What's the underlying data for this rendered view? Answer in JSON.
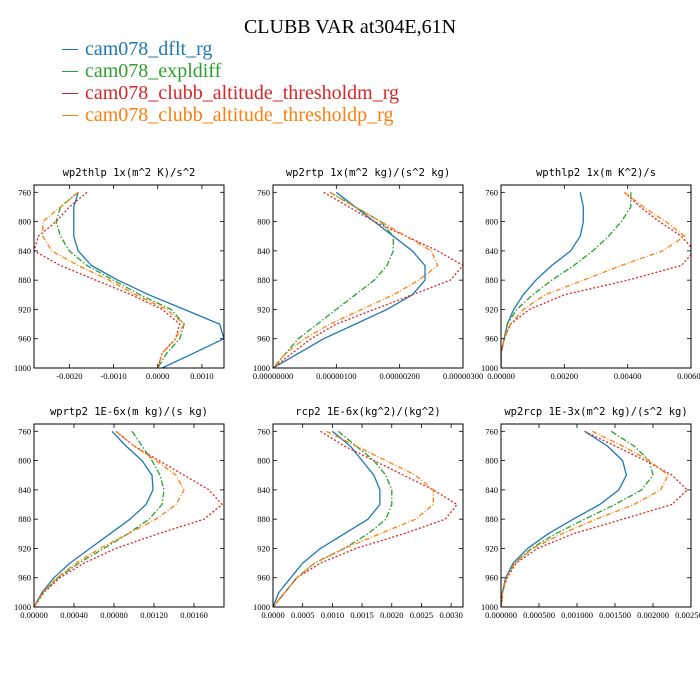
{
  "figure": {
    "title": "CLUBB VAR at304E,61N",
    "legend": [
      {
        "label": "cam078_dflt_rg",
        "color": "#1f77b4"
      },
      {
        "label": "cam078_expldiff",
        "color": "#2ca02c"
      },
      {
        "label": "cam078_clubb_altitude_thresholdm_rg",
        "color": "#d62728"
      },
      {
        "label": "cam078_clubb_altitude_thresholdp_rg",
        "color": "#ff7f0e"
      }
    ]
  },
  "chart_data": [
    {
      "type": "line",
      "title": "wp2thlp  1x(m^2 K)/s^2",
      "xlim": [
        -0.0028,
        0.0015
      ],
      "ylim": [
        1000,
        750
      ],
      "x_ticks": [
        -0.002,
        -0.001,
        0.0,
        0.001
      ],
      "x_tick_labels": [
        "-0.0020",
        "-0.0010",
        "0.0000",
        "0.0010"
      ],
      "y_ticks": [
        760,
        800,
        840,
        880,
        920,
        960,
        1000
      ],
      "series": [
        {
          "name": "cam078_dflt_rg",
          "y": [
            760,
            780,
            800,
            820,
            840,
            860,
            880,
            900,
            920,
            940,
            960,
            980,
            1000
          ],
          "x": [
            -0.0018,
            -0.0019,
            -0.0019,
            -0.0019,
            -0.0018,
            -0.0015,
            -0.0009,
            -0.0002,
            0.0006,
            0.0014,
            0.0015,
            0.0008,
            0.0001
          ]
        },
        {
          "name": "cam078_expldiff",
          "y": [
            760,
            780,
            800,
            820,
            840,
            860,
            880,
            900,
            920,
            940,
            960,
            980,
            1000
          ],
          "x": [
            -0.0018,
            -0.0022,
            -0.0023,
            -0.0022,
            -0.002,
            -0.0016,
            -0.001,
            -0.0004,
            0.0003,
            0.0006,
            0.0005,
            0.0002,
            0.0
          ]
        },
        {
          "name": "cam078_clubb_altitude_thresholdm_rg",
          "y": [
            760,
            780,
            800,
            820,
            840,
            860,
            880,
            900,
            920,
            940,
            960,
            980,
            1000
          ],
          "x": [
            -0.0016,
            -0.002,
            -0.0023,
            -0.0027,
            -0.0028,
            -0.0022,
            -0.0014,
            -0.0006,
            0.0001,
            0.0005,
            0.0004,
            0.0001,
            0.0
          ]
        },
        {
          "name": "cam078_clubb_altitude_thresholdp_rg",
          "y": [
            760,
            780,
            800,
            820,
            840,
            860,
            880,
            900,
            920,
            940,
            960,
            980,
            1000
          ],
          "x": [
            -0.0018,
            -0.0022,
            -0.0026,
            -0.0026,
            -0.0024,
            -0.0018,
            -0.0011,
            -0.0005,
            0.0002,
            0.0006,
            0.0004,
            0.0001,
            0.0
          ]
        }
      ]
    },
    {
      "type": "line",
      "title": "wp2rtp  1x(m^2 kg)/(s^2 kg)",
      "xlim": [
        0.0,
        3e-06
      ],
      "ylim": [
        1000,
        750
      ],
      "x_ticks": [
        0.0,
        1e-06,
        2e-06,
        3e-06
      ],
      "x_tick_labels": [
        "0.00000000",
        "0.00000100",
        "0.00000200",
        "0.00000300"
      ],
      "y_ticks": [
        760,
        800,
        840,
        880,
        920,
        960,
        1000
      ],
      "series": [
        {
          "name": "cam078_dflt_rg",
          "y": [
            760,
            780,
            800,
            820,
            840,
            860,
            880,
            900,
            920,
            940,
            960,
            980,
            1000
          ],
          "x": [
            1e-06,
            1.3e-06,
            1.6e-06,
            1.9e-06,
            2.2e-06,
            2.4e-06,
            2.4e-06,
            2.2e-06,
            1.8e-06,
            1.3e-06,
            8e-07,
            4e-07,
            0.0
          ]
        },
        {
          "name": "cam078_expldiff",
          "y": [
            760,
            780,
            800,
            820,
            840,
            860,
            880,
            900,
            920,
            940,
            960,
            980,
            1000
          ],
          "x": [
            9e-07,
            1.3e-06,
            1.7e-06,
            1.9e-06,
            1.9e-06,
            1.8e-06,
            1.6e-06,
            1.3e-06,
            1e-06,
            7e-07,
            4e-07,
            2e-07,
            0.0
          ]
        },
        {
          "name": "cam078_clubb_altitude_thresholdm_rg",
          "y": [
            760,
            780,
            800,
            820,
            840,
            860,
            880,
            900,
            920,
            940,
            960,
            980,
            1000
          ],
          "x": [
            8e-07,
            1.2e-06,
            1.6e-06,
            2.1e-06,
            2.6e-06,
            3e-06,
            2.8e-06,
            2.2e-06,
            1.6e-06,
            1e-06,
            6e-07,
            3e-07,
            0.0
          ]
        },
        {
          "name": "cam078_clubb_altitude_thresholdp_rg",
          "y": [
            760,
            780,
            800,
            820,
            840,
            860,
            880,
            900,
            920,
            940,
            960,
            980,
            1000
          ],
          "x": [
            9e-07,
            1.3e-06,
            1.7e-06,
            2.1e-06,
            2.5e-06,
            2.6e-06,
            2.3e-06,
            1.9e-06,
            1.4e-06,
            9e-07,
            5e-07,
            2e-07,
            0.0
          ]
        }
      ]
    },
    {
      "type": "line",
      "title": "wpthlp2  1x(m K^2)/s",
      "xlim": [
        0.0,
        0.006
      ],
      "ylim": [
        1000,
        750
      ],
      "x_ticks": [
        0.0,
        0.002,
        0.004,
        0.006
      ],
      "x_tick_labels": [
        "0.00000",
        "0.00200",
        "0.00400",
        "0.00600"
      ],
      "y_ticks": [
        760,
        800,
        840,
        880,
        920,
        960,
        1000
      ],
      "series": [
        {
          "name": "cam078_dflt_rg",
          "y": [
            760,
            780,
            800,
            820,
            840,
            860,
            880,
            900,
            920,
            940,
            960,
            980,
            1000
          ],
          "x": [
            0.0025,
            0.0026,
            0.0026,
            0.0025,
            0.0022,
            0.0016,
            0.0011,
            0.0007,
            0.0004,
            0.0002,
            0.0001,
            0.0,
            0.0
          ]
        },
        {
          "name": "cam078_expldiff",
          "y": [
            760,
            780,
            800,
            820,
            840,
            860,
            880,
            900,
            920,
            940,
            960,
            980,
            1000
          ],
          "x": [
            0.0041,
            0.0041,
            0.0038,
            0.0034,
            0.0029,
            0.0023,
            0.0016,
            0.001,
            0.0005,
            0.0002,
            0.0001,
            0.0,
            0.0
          ]
        },
        {
          "name": "cam078_clubb_altitude_thresholdm_rg",
          "y": [
            760,
            780,
            800,
            820,
            840,
            860,
            880,
            900,
            920,
            940,
            960,
            980,
            1000
          ],
          "x": [
            0.0039,
            0.0044,
            0.005,
            0.0057,
            0.0061,
            0.0057,
            0.004,
            0.002,
            0.0009,
            0.0003,
            0.0001,
            0.0,
            0.0
          ]
        },
        {
          "name": "cam078_clubb_altitude_thresholdp_rg",
          "y": [
            760,
            780,
            800,
            820,
            840,
            860,
            880,
            900,
            920,
            940,
            960,
            980,
            1000
          ],
          "x": [
            0.0039,
            0.0045,
            0.0052,
            0.0058,
            0.0051,
            0.0038,
            0.0026,
            0.0014,
            0.0007,
            0.0003,
            0.0001,
            0.0,
            0.0
          ]
        }
      ]
    },
    {
      "type": "line",
      "title": "wprtp2  1E-6x(m kg)/(s kg)",
      "xlim": [
        0.0,
        0.0019
      ],
      "ylim": [
        1000,
        750
      ],
      "x_ticks": [
        0.0,
        0.0004,
        0.0008,
        0.0012,
        0.0016
      ],
      "x_tick_labels": [
        "0.00000",
        "0.00040",
        "0.00080",
        "0.00120",
        "0.00160"
      ],
      "y_ticks": [
        760,
        800,
        840,
        880,
        920,
        960,
        1000
      ],
      "series": [
        {
          "name": "cam078_dflt_rg",
          "y": [
            760,
            780,
            800,
            820,
            840,
            860,
            880,
            900,
            920,
            940,
            960,
            980,
            1000
          ],
          "x": [
            0.00078,
            0.00092,
            0.00108,
            0.00118,
            0.00119,
            0.00112,
            0.00096,
            0.00076,
            0.00056,
            0.00036,
            0.0002,
            8e-05,
            0.0
          ]
        },
        {
          "name": "cam078_expldiff",
          "y": [
            760,
            780,
            800,
            820,
            840,
            860,
            880,
            900,
            920,
            940,
            960,
            980,
            1000
          ],
          "x": [
            0.00098,
            0.00108,
            0.00118,
            0.00126,
            0.0013,
            0.00128,
            0.00115,
            0.00094,
            0.0007,
            0.00045,
            0.00024,
            9e-05,
            0.0
          ]
        },
        {
          "name": "cam078_clubb_altitude_thresholdm_rg",
          "y": [
            760,
            780,
            800,
            820,
            840,
            860,
            880,
            900,
            920,
            940,
            960,
            980,
            1000
          ],
          "x": [
            0.00082,
            0.001,
            0.00125,
            0.0015,
            0.00175,
            0.00188,
            0.0017,
            0.00124,
            0.00082,
            0.0005,
            0.00026,
            0.0001,
            0.0
          ]
        },
        {
          "name": "cam078_clubb_altitude_thresholdp_rg",
          "y": [
            760,
            780,
            800,
            820,
            840,
            860,
            880,
            900,
            920,
            940,
            960,
            980,
            1000
          ],
          "x": [
            0.00082,
            0.001,
            0.00122,
            0.00142,
            0.0015,
            0.00142,
            0.00122,
            0.00094,
            0.00066,
            0.00042,
            0.00023,
            9e-05,
            0.0
          ]
        }
      ]
    },
    {
      "type": "line",
      "title": "rcp2  1E-6x(kg^2)/(kg^2)",
      "xlim": [
        0.0,
        0.0032
      ],
      "ylim": [
        1000,
        750
      ],
      "x_ticks": [
        0.0,
        0.0005,
        0.001,
        0.0015,
        0.002,
        0.0025,
        0.003
      ],
      "x_tick_labels": [
        "0.0000",
        "0.0005",
        "0.0010",
        "0.0015",
        "0.0020",
        "0.0025",
        "0.0030"
      ],
      "y_ticks": [
        760,
        800,
        840,
        880,
        920,
        960,
        1000
      ],
      "series": [
        {
          "name": "cam078_dflt_rg",
          "y": [
            760,
            780,
            800,
            820,
            840,
            860,
            880,
            900,
            920,
            940,
            960,
            980,
            1000
          ],
          "x": [
            0.001,
            0.0013,
            0.0015,
            0.0017,
            0.0018,
            0.0018,
            0.0016,
            0.0012,
            0.0008,
            0.0005,
            0.0003,
            0.0001,
            0.0
          ]
        },
        {
          "name": "cam078_expldiff",
          "y": [
            760,
            780,
            800,
            820,
            840,
            860,
            880,
            900,
            920,
            940,
            960,
            980,
            1000
          ],
          "x": [
            0.0011,
            0.0014,
            0.0017,
            0.0019,
            0.002,
            0.002,
            0.0019,
            0.0016,
            0.0012,
            0.0007,
            0.0004,
            0.0002,
            0.0
          ]
        },
        {
          "name": "cam078_clubb_altitude_thresholdm_rg",
          "y": [
            760,
            780,
            800,
            820,
            840,
            860,
            880,
            900,
            920,
            940,
            960,
            980,
            1000
          ],
          "x": [
            0.0008,
            0.0012,
            0.0017,
            0.0022,
            0.0027,
            0.0031,
            0.0029,
            0.0022,
            0.0014,
            0.0008,
            0.0004,
            0.0002,
            0.0
          ]
        },
        {
          "name": "cam078_clubb_altitude_thresholdp_rg",
          "y": [
            760,
            780,
            800,
            820,
            840,
            860,
            880,
            900,
            920,
            940,
            960,
            980,
            1000
          ],
          "x": [
            0.0009,
            0.0014,
            0.0019,
            0.0024,
            0.0027,
            0.0027,
            0.0024,
            0.0018,
            0.0012,
            0.0007,
            0.0004,
            0.0002,
            0.0
          ]
        }
      ]
    },
    {
      "type": "line",
      "title": "wp2rcp  1E-3x(m^2 kg)/(s^2 kg)",
      "xlim": [
        0.0,
        0.0025
      ],
      "ylim": [
        1000,
        750
      ],
      "x_ticks": [
        0.0,
        0.0005,
        0.001,
        0.0015,
        0.002,
        0.0025
      ],
      "x_tick_labels": [
        "0.000000",
        "0.000500",
        "0.001000",
        "0.001500",
        "0.002000",
        "0.002500"
      ],
      "y_ticks": [
        760,
        800,
        840,
        880,
        920,
        960,
        1000
      ],
      "series": [
        {
          "name": "cam078_dflt_rg",
          "y": [
            760,
            780,
            800,
            820,
            840,
            860,
            880,
            900,
            920,
            940,
            960,
            980,
            1000
          ],
          "x": [
            0.0011,
            0.0014,
            0.0016,
            0.00165,
            0.00155,
            0.0013,
            0.00095,
            0.00062,
            0.00035,
            0.00016,
            6e-05,
            2e-05,
            0.0
          ]
        },
        {
          "name": "cam078_expldiff",
          "y": [
            760,
            780,
            800,
            820,
            840,
            860,
            880,
            900,
            920,
            940,
            960,
            980,
            1000
          ],
          "x": [
            0.00145,
            0.00175,
            0.00195,
            0.002,
            0.00185,
            0.0015,
            0.0011,
            0.00072,
            0.0004,
            0.00018,
            7e-05,
            2e-05,
            0.0
          ]
        },
        {
          "name": "cam078_clubb_altitude_thresholdm_rg",
          "y": [
            760,
            780,
            800,
            820,
            840,
            860,
            880,
            900,
            920,
            940,
            960,
            980,
            1000
          ],
          "x": [
            0.0011,
            0.0015,
            0.0019,
            0.00225,
            0.00245,
            0.00225,
            0.0016,
            0.00095,
            0.00048,
            0.0002,
            8e-05,
            2e-05,
            0.0
          ]
        },
        {
          "name": "cam078_clubb_altitude_thresholdp_rg",
          "y": [
            760,
            780,
            800,
            820,
            840,
            860,
            880,
            900,
            920,
            940,
            960,
            980,
            1000
          ],
          "x": [
            0.0012,
            0.0016,
            0.00195,
            0.0022,
            0.0021,
            0.00175,
            0.00125,
            0.0008,
            0.00042,
            0.00018,
            7e-05,
            2e-05,
            0.0
          ]
        }
      ]
    }
  ]
}
